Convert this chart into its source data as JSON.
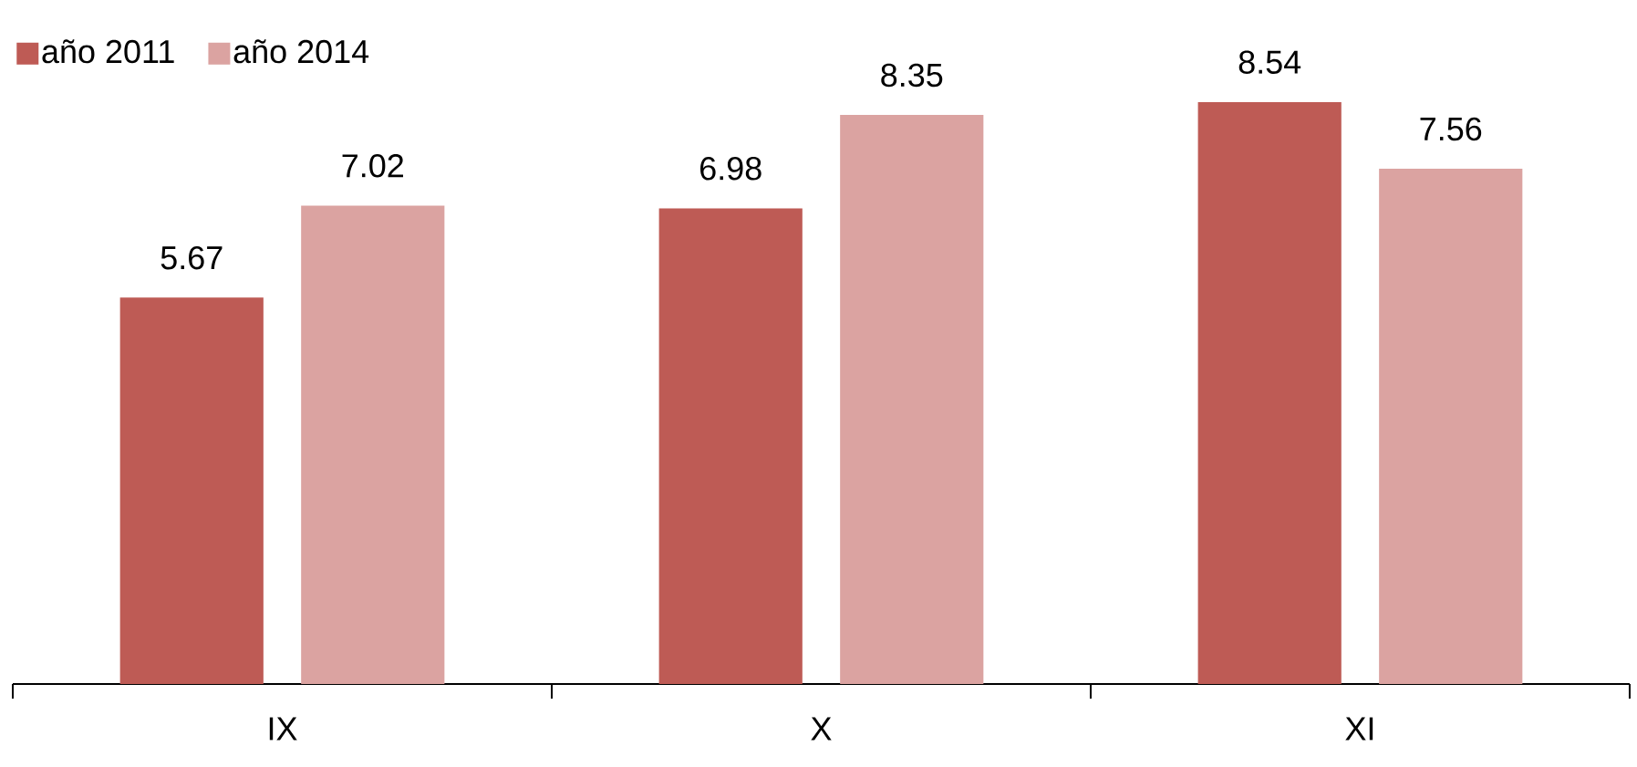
{
  "chart_data": {
    "type": "bar",
    "categories": [
      "IX",
      "X",
      "XI"
    ],
    "series": [
      {
        "name": "año 2011",
        "color": "#be5b55",
        "values": [
          5.67,
          6.98,
          8.54
        ]
      },
      {
        "name": "año 2014",
        "color": "#dba3a1",
        "values": [
          7.02,
          8.35,
          7.56
        ]
      }
    ],
    "data_labels": true,
    "legend": "top left"
  }
}
